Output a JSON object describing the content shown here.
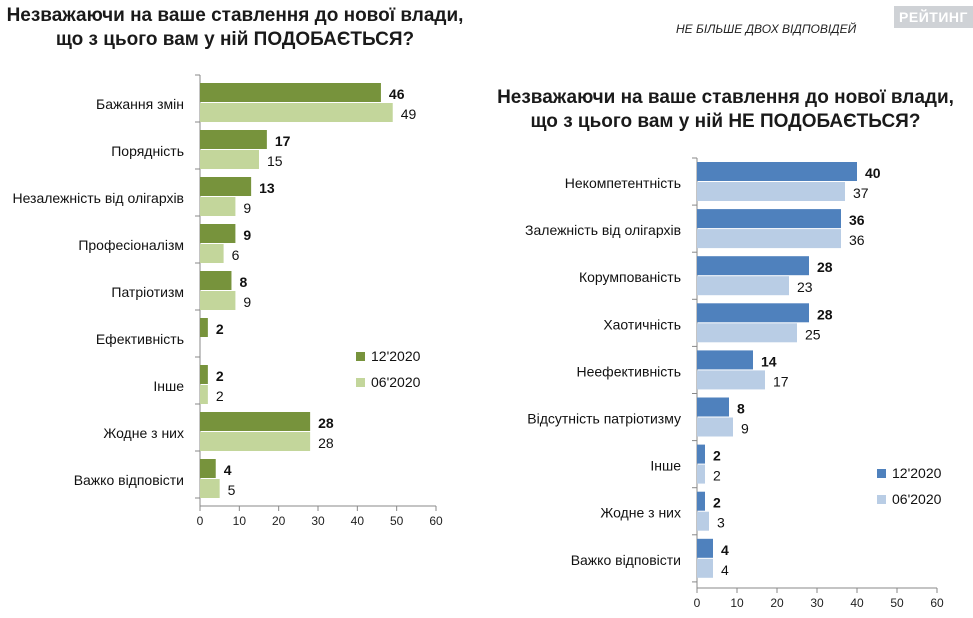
{
  "branding": {
    "logo": "РЕЙТИНГ",
    "note": "НЕ БІЛЬШЕ ДВОХ ВІДПОВІДЕЙ"
  },
  "chart_data": [
    {
      "type": "bar",
      "orientation": "horizontal",
      "title": "Незважаючи на ваше ставлення до нової влади, що з цього вам у ній ПОДОБАЄТЬСЯ?",
      "title_lines": [
        "Незважаючи на ваше ставлення до нової влади,",
        "що з цього вам у ній ПОДОБАЄТЬСЯ?"
      ],
      "categories": [
        "Бажання змін",
        "Порядність",
        "Незалежність від олігархів",
        "Професіоналізм",
        "Патріотизм",
        "Ефективність",
        "Інше",
        "Жодне з них",
        "Важко відповісти"
      ],
      "series": [
        {
          "name": "12'2020",
          "values": [
            46,
            17,
            13,
            9,
            8,
            2,
            2,
            28,
            4
          ],
          "color": "#77933c"
        },
        {
          "name": "06'2020",
          "values": [
            49,
            15,
            9,
            6,
            9,
            null,
            2,
            28,
            5
          ],
          "color": "#c3d69b"
        }
      ],
      "xlim": [
        0,
        60
      ],
      "xticks": [
        0,
        10,
        20,
        30,
        40,
        50,
        60
      ],
      "grid": false,
      "legend": "lower-right"
    },
    {
      "type": "bar",
      "orientation": "horizontal",
      "title": "Незважаючи на ваше ставлення до нової влади, що з цього вам у ній НЕ ПОДОБАЄТЬСЯ?",
      "title_lines": [
        "Незважаючи на ваше ставлення до нової влади,",
        "що з цього вам у ній НЕ ПОДОБАЄТЬСЯ?"
      ],
      "categories": [
        "Некомпетентність",
        "Залежність від олігархів",
        "Корумпованість",
        "Хаотичність",
        "Неефективність",
        "Відсутність патріотизму",
        "Інше",
        "Жодне з них",
        "Важко відповісти"
      ],
      "series": [
        {
          "name": "12'2020",
          "values": [
            40,
            36,
            28,
            28,
            14,
            8,
            2,
            2,
            4
          ],
          "color": "#4f81bd"
        },
        {
          "name": "06'2020",
          "values": [
            37,
            36,
            23,
            25,
            17,
            9,
            2,
            3,
            4
          ],
          "color": "#b9cde5"
        }
      ],
      "xlim": [
        0,
        60
      ],
      "xticks": [
        0,
        10,
        20,
        30,
        40,
        50,
        60
      ],
      "grid": false,
      "legend": "lower-right"
    }
  ]
}
